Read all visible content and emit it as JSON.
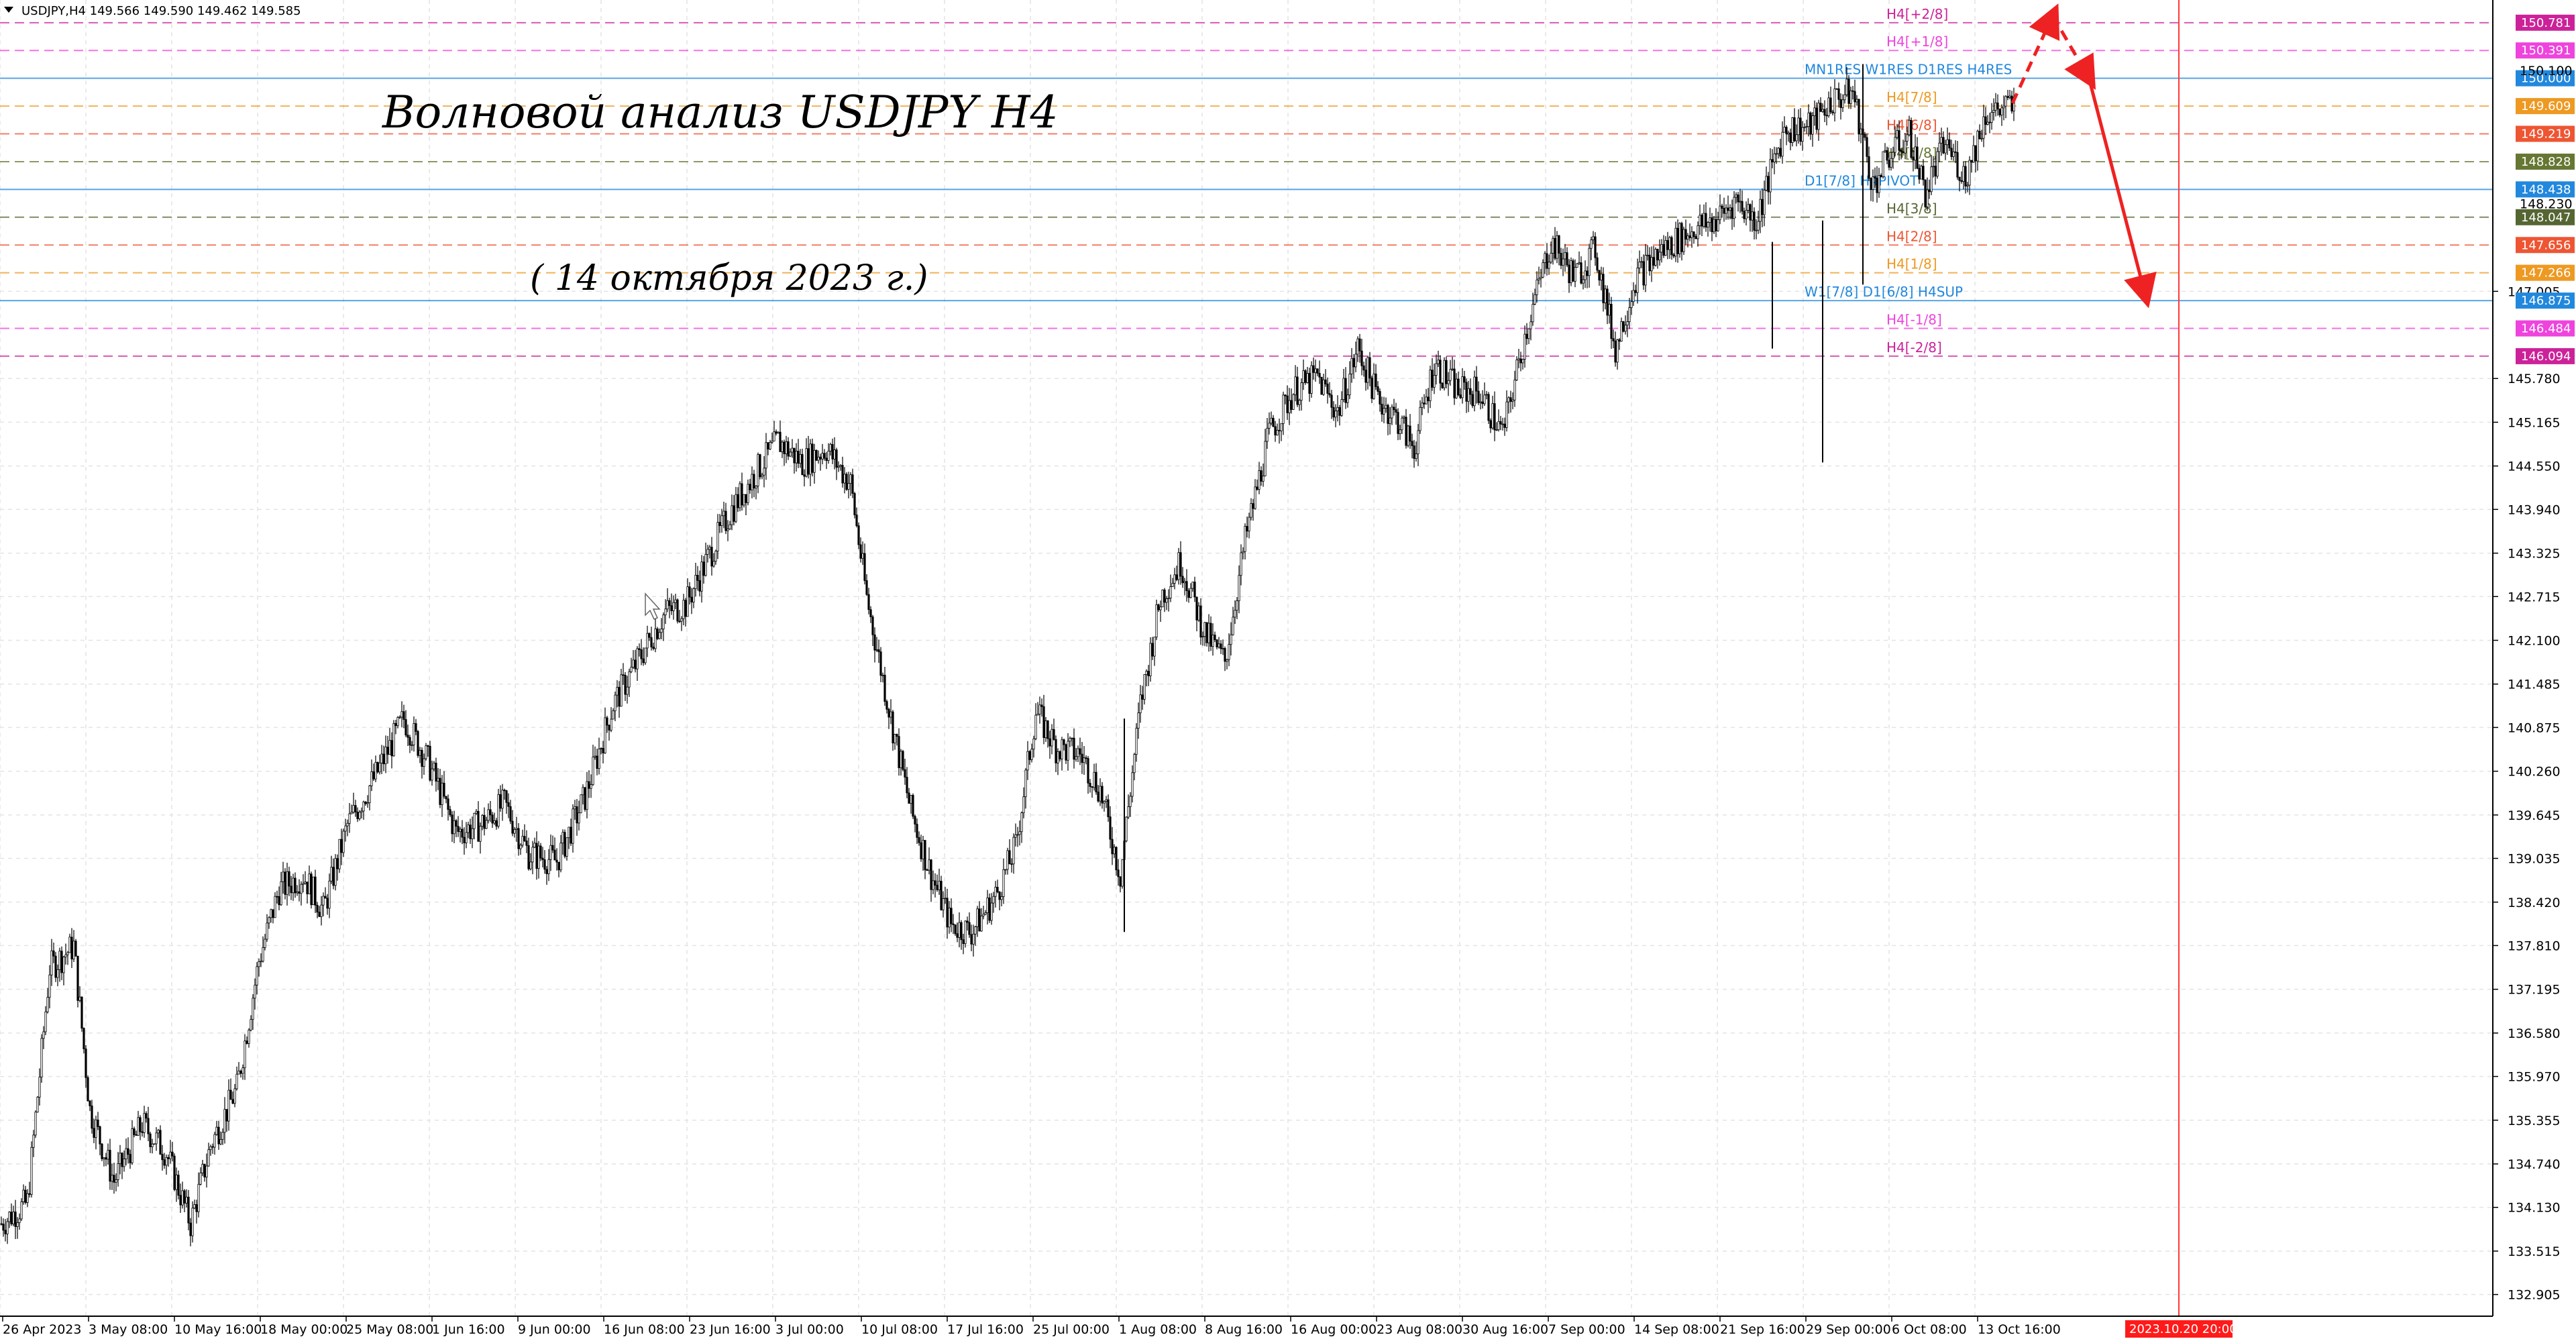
{
  "header": {
    "symbol_line": "USDJPY,H4  149.566 149.590 149.462 149.585",
    "menu_icon": "triangle-down-icon"
  },
  "annotations": {
    "title": "Волновой анализ USDJPY H4",
    "date": "( 14 октября 2023 г.)",
    "forecast_color": "#ee2222"
  },
  "chart_data": {
    "type": "candlestick",
    "symbol": "USDJPY",
    "timeframe": "H4",
    "ylim": [
      132.6,
      151.1
    ],
    "y_ticks": [
      132.905,
      133.515,
      134.13,
      134.74,
      135.355,
      135.97,
      136.58,
      137.195,
      137.81,
      138.42,
      139.035,
      139.645,
      140.26,
      140.875,
      141.485,
      142.1,
      142.715,
      143.325,
      143.94,
      144.55,
      145.165,
      145.78,
      147.005
    ],
    "y_tick_labels": [
      "132.905",
      "133.515",
      "134.130",
      "134.740",
      "135.355",
      "135.970",
      "136.580",
      "137.195",
      "137.810",
      "138.420",
      "139.035",
      "139.645",
      "140.260",
      "140.875",
      "141.485",
      "142.100",
      "142.715",
      "143.325",
      "143.940",
      "144.550",
      "145.165",
      "145.780",
      "147.005"
    ],
    "x_labels": [
      "26 Apr 2023",
      "3 May 08:00",
      "10 May 16:00",
      "18 May 00:00",
      "25 May 08:00",
      "1 Jun 16:00",
      "9 Jun 00:00",
      "16 Jun 08:00",
      "23 Jun 16:00",
      "3 Jul 00:00",
      "10 Jul 08:00",
      "17 Jul 16:00",
      "25 Jul 00:00",
      "1 Aug 08:00",
      "8 Aug 16:00",
      "16 Aug 00:00",
      "23 Aug 08:00",
      "30 Aug 16:00",
      "7 Sep 00:00",
      "14 Sep 08:00",
      "21 Sep 16:00",
      "29 Sep 00:00",
      "6 Oct 08:00",
      "13 Oct 16:00"
    ],
    "current_time_label": "2023.10.20 20:00",
    "price_path": [
      [
        0,
        133.9
      ],
      [
        13,
        134.2
      ],
      [
        24,
        137.5
      ],
      [
        36,
        137.8
      ],
      [
        44,
        135.5
      ],
      [
        56,
        134.5
      ],
      [
        70,
        135.3
      ],
      [
        82,
        134.9
      ],
      [
        94,
        133.9
      ],
      [
        104,
        135.0
      ],
      [
        117,
        135.8
      ],
      [
        128,
        137.6
      ],
      [
        138,
        138.6
      ],
      [
        150,
        138.8
      ],
      [
        160,
        138.3
      ],
      [
        172,
        139.5
      ],
      [
        186,
        140.2
      ],
      [
        200,
        141.0
      ],
      [
        212,
        140.4
      ],
      [
        226,
        139.4
      ],
      [
        238,
        139.5
      ],
      [
        250,
        139.8
      ],
      [
        262,
        139.1
      ],
      [
        276,
        139.0
      ],
      [
        290,
        139.9
      ],
      [
        304,
        141.2
      ],
      [
        316,
        141.8
      ],
      [
        330,
        142.5
      ],
      [
        340,
        142.6
      ],
      [
        352,
        143.3
      ],
      [
        362,
        143.9
      ],
      [
        376,
        144.5
      ],
      [
        386,
        144.9
      ],
      [
        398,
        144.6
      ],
      [
        410,
        144.8
      ],
      [
        422,
        144.3
      ],
      [
        430,
        142.7
      ],
      [
        442,
        141.0
      ],
      [
        452,
        139.7
      ],
      [
        462,
        138.8
      ],
      [
        472,
        138.1
      ],
      [
        482,
        138.0
      ],
      [
        494,
        138.5
      ],
      [
        504,
        139.2
      ],
      [
        514,
        141.1
      ],
      [
        524,
        140.6
      ],
      [
        536,
        140.5
      ],
      [
        546,
        140.0
      ],
      [
        556,
        138.8
      ],
      [
        566,
        141.2
      ],
      [
        576,
        142.7
      ],
      [
        586,
        143.2
      ],
      [
        598,
        142.2
      ],
      [
        608,
        141.8
      ],
      [
        618,
        143.5
      ],
      [
        630,
        145.0
      ],
      [
        642,
        145.6
      ],
      [
        654,
        145.8
      ],
      [
        664,
        145.3
      ],
      [
        674,
        146.2
      ],
      [
        684,
        145.5
      ],
      [
        694,
        145.2
      ],
      [
        702,
        144.8
      ],
      [
        712,
        146.0
      ],
      [
        724,
        145.6
      ],
      [
        734,
        145.6
      ],
      [
        746,
        145.0
      ],
      [
        758,
        146.5
      ],
      [
        770,
        147.7
      ],
      [
        782,
        147.2
      ],
      [
        792,
        147.6
      ],
      [
        802,
        146.2
      ],
      [
        812,
        147.2
      ],
      [
        826,
        147.6
      ],
      [
        842,
        147.9
      ],
      [
        852,
        148.0
      ],
      [
        862,
        148.3
      ],
      [
        872,
        148.0
      ],
      [
        886,
        149.3
      ],
      [
        898,
        149.3
      ],
      [
        910,
        149.7
      ],
      [
        920,
        149.8
      ],
      [
        930,
        148.5
      ],
      [
        940,
        149.0
      ],
      [
        948,
        149.2
      ],
      [
        956,
        148.4
      ],
      [
        966,
        149.1
      ],
      [
        976,
        148.6
      ],
      [
        986,
        149.5
      ],
      [
        998,
        149.6
      ]
    ],
    "spikes": [
      {
        "t": 880,
        "high": 147.7,
        "low": 146.2
      },
      {
        "t": 905,
        "high": 148.0,
        "low": 144.6
      },
      {
        "t": 925,
        "high": 150.2,
        "low": 147.1
      },
      {
        "t": 558,
        "high": 141.0,
        "low": 138.0
      }
    ],
    "levels": [
      {
        "price": 150.781,
        "label": "H4[+2/8]",
        "tag": "150.781",
        "color": "#cc2299",
        "style": "dash"
      },
      {
        "price": 150.391,
        "label": "H4[+1/8]",
        "tag": "150.391",
        "color": "#ee44dd",
        "style": "dash"
      },
      {
        "price": 150.0,
        "label": "MN1RES W1RES D1RES H4RES",
        "tag": "150.000",
        "color": "#2288dd",
        "style": "solid"
      },
      {
        "price": 149.609,
        "label": "H4[7/8]",
        "tag": "149.609",
        "color": "#ee9922",
        "style": "dash"
      },
      {
        "price": 149.219,
        "label": "H4[6/8]",
        "tag": "149.219",
        "color": "#ee5533",
        "style": "dash"
      },
      {
        "price": 148.828,
        "label": "H4[5/8]",
        "tag": "148.828",
        "color": "#667733",
        "style": "dash"
      },
      {
        "price": 148.438,
        "label": "D1[7/8] H4PIVOT",
        "tag": "148.438",
        "color": "#2288dd",
        "style": "solid"
      },
      {
        "price": 148.047,
        "label": "H4[3/8]",
        "tag": "148.047",
        "color": "#556633",
        "style": "dash"
      },
      {
        "price": 147.656,
        "label": "H4[2/8]",
        "tag": "147.656",
        "color": "#ee5533",
        "style": "dash"
      },
      {
        "price": 147.266,
        "label": "H4[1/8]",
        "tag": "147.266",
        "color": "#ee9922",
        "style": "dash"
      },
      {
        "price": 146.875,
        "label": "W1[7/8] D1[6/8] H4SUP",
        "tag": "146.875",
        "color": "#2288dd",
        "style": "solid"
      },
      {
        "price": 146.484,
        "label": "H4[-1/8]",
        "tag": "146.484",
        "color": "#ee44dd",
        "style": "dash"
      },
      {
        "price": 146.094,
        "label": "H4[-2/8]",
        "tag": "146.094",
        "color": "#cc2299",
        "style": "dash"
      }
    ],
    "extra_tag": {
      "price": 150.1,
      "label": "150.100"
    },
    "extra_tag2": {
      "price": 148.23,
      "label": "148.230"
    },
    "forecast": {
      "dashed_up": [
        [
          1000,
          149.65
        ],
        [
          1020,
          150.88
        ]
      ],
      "dashed_down": [
        [
          1020,
          150.88
        ],
        [
          1038,
          150.0
        ]
      ],
      "solid_down": [
        [
          1038,
          150.0
        ],
        [
          1066,
          146.95
        ]
      ]
    },
    "current_time_t": 1066
  }
}
